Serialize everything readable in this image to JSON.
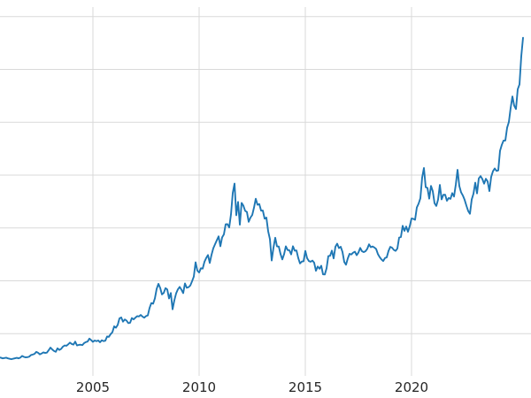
{
  "figure": {
    "background_color": "#ffffff",
    "title": ""
  },
  "chart_data": {
    "type": "line",
    "title": "",
    "xlabel": "",
    "ylabel": "",
    "grid": true,
    "legend": "none",
    "line_color": "#1f77b4",
    "line_width": 1.9,
    "grid_color": "#d9d9d9",
    "tick_label_color": "#262626",
    "tick_label_font_size": 15,
    "x_start_year": 2000,
    "x_start_month": 8,
    "x_interval": "monthly",
    "xlim": [
      2000.625,
      2025.625
    ],
    "ylim": [
      100,
      3590
    ],
    "x_ticks": [
      {
        "year": 2005,
        "label": "2005"
      },
      {
        "year": 2010,
        "label": "2010"
      },
      {
        "year": 2015,
        "label": "2015"
      },
      {
        "year": 2020,
        "label": "2020"
      }
    ],
    "y_gridline_values": [
      500,
      1000,
      1500,
      2000,
      2500,
      3000,
      3500
    ],
    "values": [
      275,
      272,
      266,
      269,
      272,
      266,
      262,
      258,
      263,
      267,
      271,
      266,
      273,
      289,
      280,
      275,
      277,
      282,
      297,
      302,
      308,
      327,
      319,
      304,
      312,
      322,
      317,
      320,
      343,
      368,
      350,
      336,
      328,
      361,
      346,
      355,
      376,
      388,
      385,
      398,
      415,
      402,
      396,
      424,
      388,
      393,
      395,
      391,
      410,
      420,
      425,
      453,
      438,
      422,
      435,
      428,
      435,
      418,
      437,
      429,
      433,
      473,
      470,
      495,
      513,
      569,
      556,
      582,
      644,
      653,
      613,
      634,
      623,
      599,
      603,
      647,
      635,
      651,
      665,
      662,
      677,
      661,
      651,
      666,
      672,
      743,
      789,
      783,
      833,
      923,
      971,
      933,
      871,
      885,
      930,
      918,
      833,
      884,
      730,
      815,
      880,
      919,
      942,
      916,
      883,
      975,
      934,
      939,
      955,
      995,
      1040,
      1175,
      1096,
      1078,
      1118,
      1115,
      1179,
      1215,
      1244,
      1169,
      1246,
      1307,
      1346,
      1383,
      1420,
      1327,
      1411,
      1439,
      1535,
      1536,
      1505,
      1628,
      1831,
      1920,
      1620,
      1746,
      1531,
      1737,
      1711,
      1662,
      1651,
      1558,
      1598,
      1622,
      1692,
      1776,
      1719,
      1726,
      1664,
      1664,
      1588,
      1598,
      1469,
      1394,
      1192,
      1313,
      1407,
      1326,
      1324,
      1253,
      1202,
      1251,
      1326,
      1291,
      1288,
      1250,
      1327,
      1285,
      1287,
      1216,
      1164,
      1182,
      1184,
      1283,
      1214,
      1187,
      1180,
      1191,
      1171,
      1095,
      1135,
      1114,
      1142,
      1061,
      1060,
      1118,
      1234,
      1237,
      1285,
      1212,
      1322,
      1351,
      1309,
      1322,
      1272,
      1178,
      1152,
      1212,
      1255,
      1249,
      1266,
      1275,
      1242,
      1267,
      1311,
      1280,
      1271,
      1280,
      1303,
      1345,
      1318,
      1325,
      1315,
      1301,
      1253,
      1224,
      1202,
      1187,
      1215,
      1222,
      1282,
      1321,
      1313,
      1292,
      1283,
      1305,
      1409,
      1414,
      1520,
      1472,
      1513,
      1464,
      1517,
      1589,
      1586,
      1577,
      1694,
      1730,
      1781,
      1976,
      2067,
      1886,
      1879,
      1777,
      1898,
      1848,
      1734,
      1708,
      1769,
      1907,
      1770,
      1814,
      1814,
      1757,
      1783,
      1775,
      1829,
      1797,
      1909,
      2050,
      1897,
      1837,
      1807,
      1766,
      1711,
      1661,
      1634,
      1769,
      1824,
      1928,
      1827,
      1969,
      1990,
      1963,
      1919,
      1965,
      1940,
      1849,
      1983,
      2036,
      2063,
      2040,
      2044,
      2230,
      2286,
      2327,
      2327,
      2448,
      2503,
      2635,
      2744,
      2657,
      2625,
      2812,
      2858,
      3124,
      3300
    ]
  }
}
